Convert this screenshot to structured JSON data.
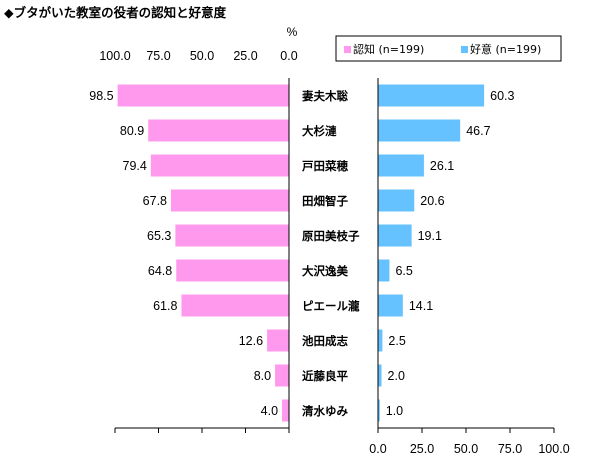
{
  "chart_data": {
    "type": "bar",
    "title": "◆ブタがいた教室の役者の認知と好意度",
    "unit": "%",
    "categories": [
      "妻夫木聡",
      "大杉漣",
      "戸田菜穂",
      "田畑智子",
      "原田美枝子",
      "大沢逸美",
      "ピエール瀧",
      "池田成志",
      "近藤良平",
      "清水ゆみ"
    ],
    "series": [
      {
        "name": "認知 (n=199)",
        "values": [
          98.5,
          80.9,
          79.4,
          67.8,
          65.3,
          64.8,
          61.8,
          12.6,
          8.0,
          4.0
        ],
        "color": "#ff99ee"
      },
      {
        "name": "好意 (n=199)",
        "values": [
          60.3,
          46.7,
          26.1,
          20.6,
          19.1,
          6.5,
          14.1,
          2.5,
          2.0,
          1.0
        ],
        "color": "#66c2ff"
      }
    ],
    "left_ticks": [
      "100.0",
      "75.0",
      "50.0",
      "25.0",
      "0.0"
    ],
    "right_ticks": [
      "0.0",
      "25.0",
      "50.0",
      "75.0",
      "100.0"
    ],
    "xlim": [
      0,
      100
    ],
    "legend_position": "top-right"
  }
}
